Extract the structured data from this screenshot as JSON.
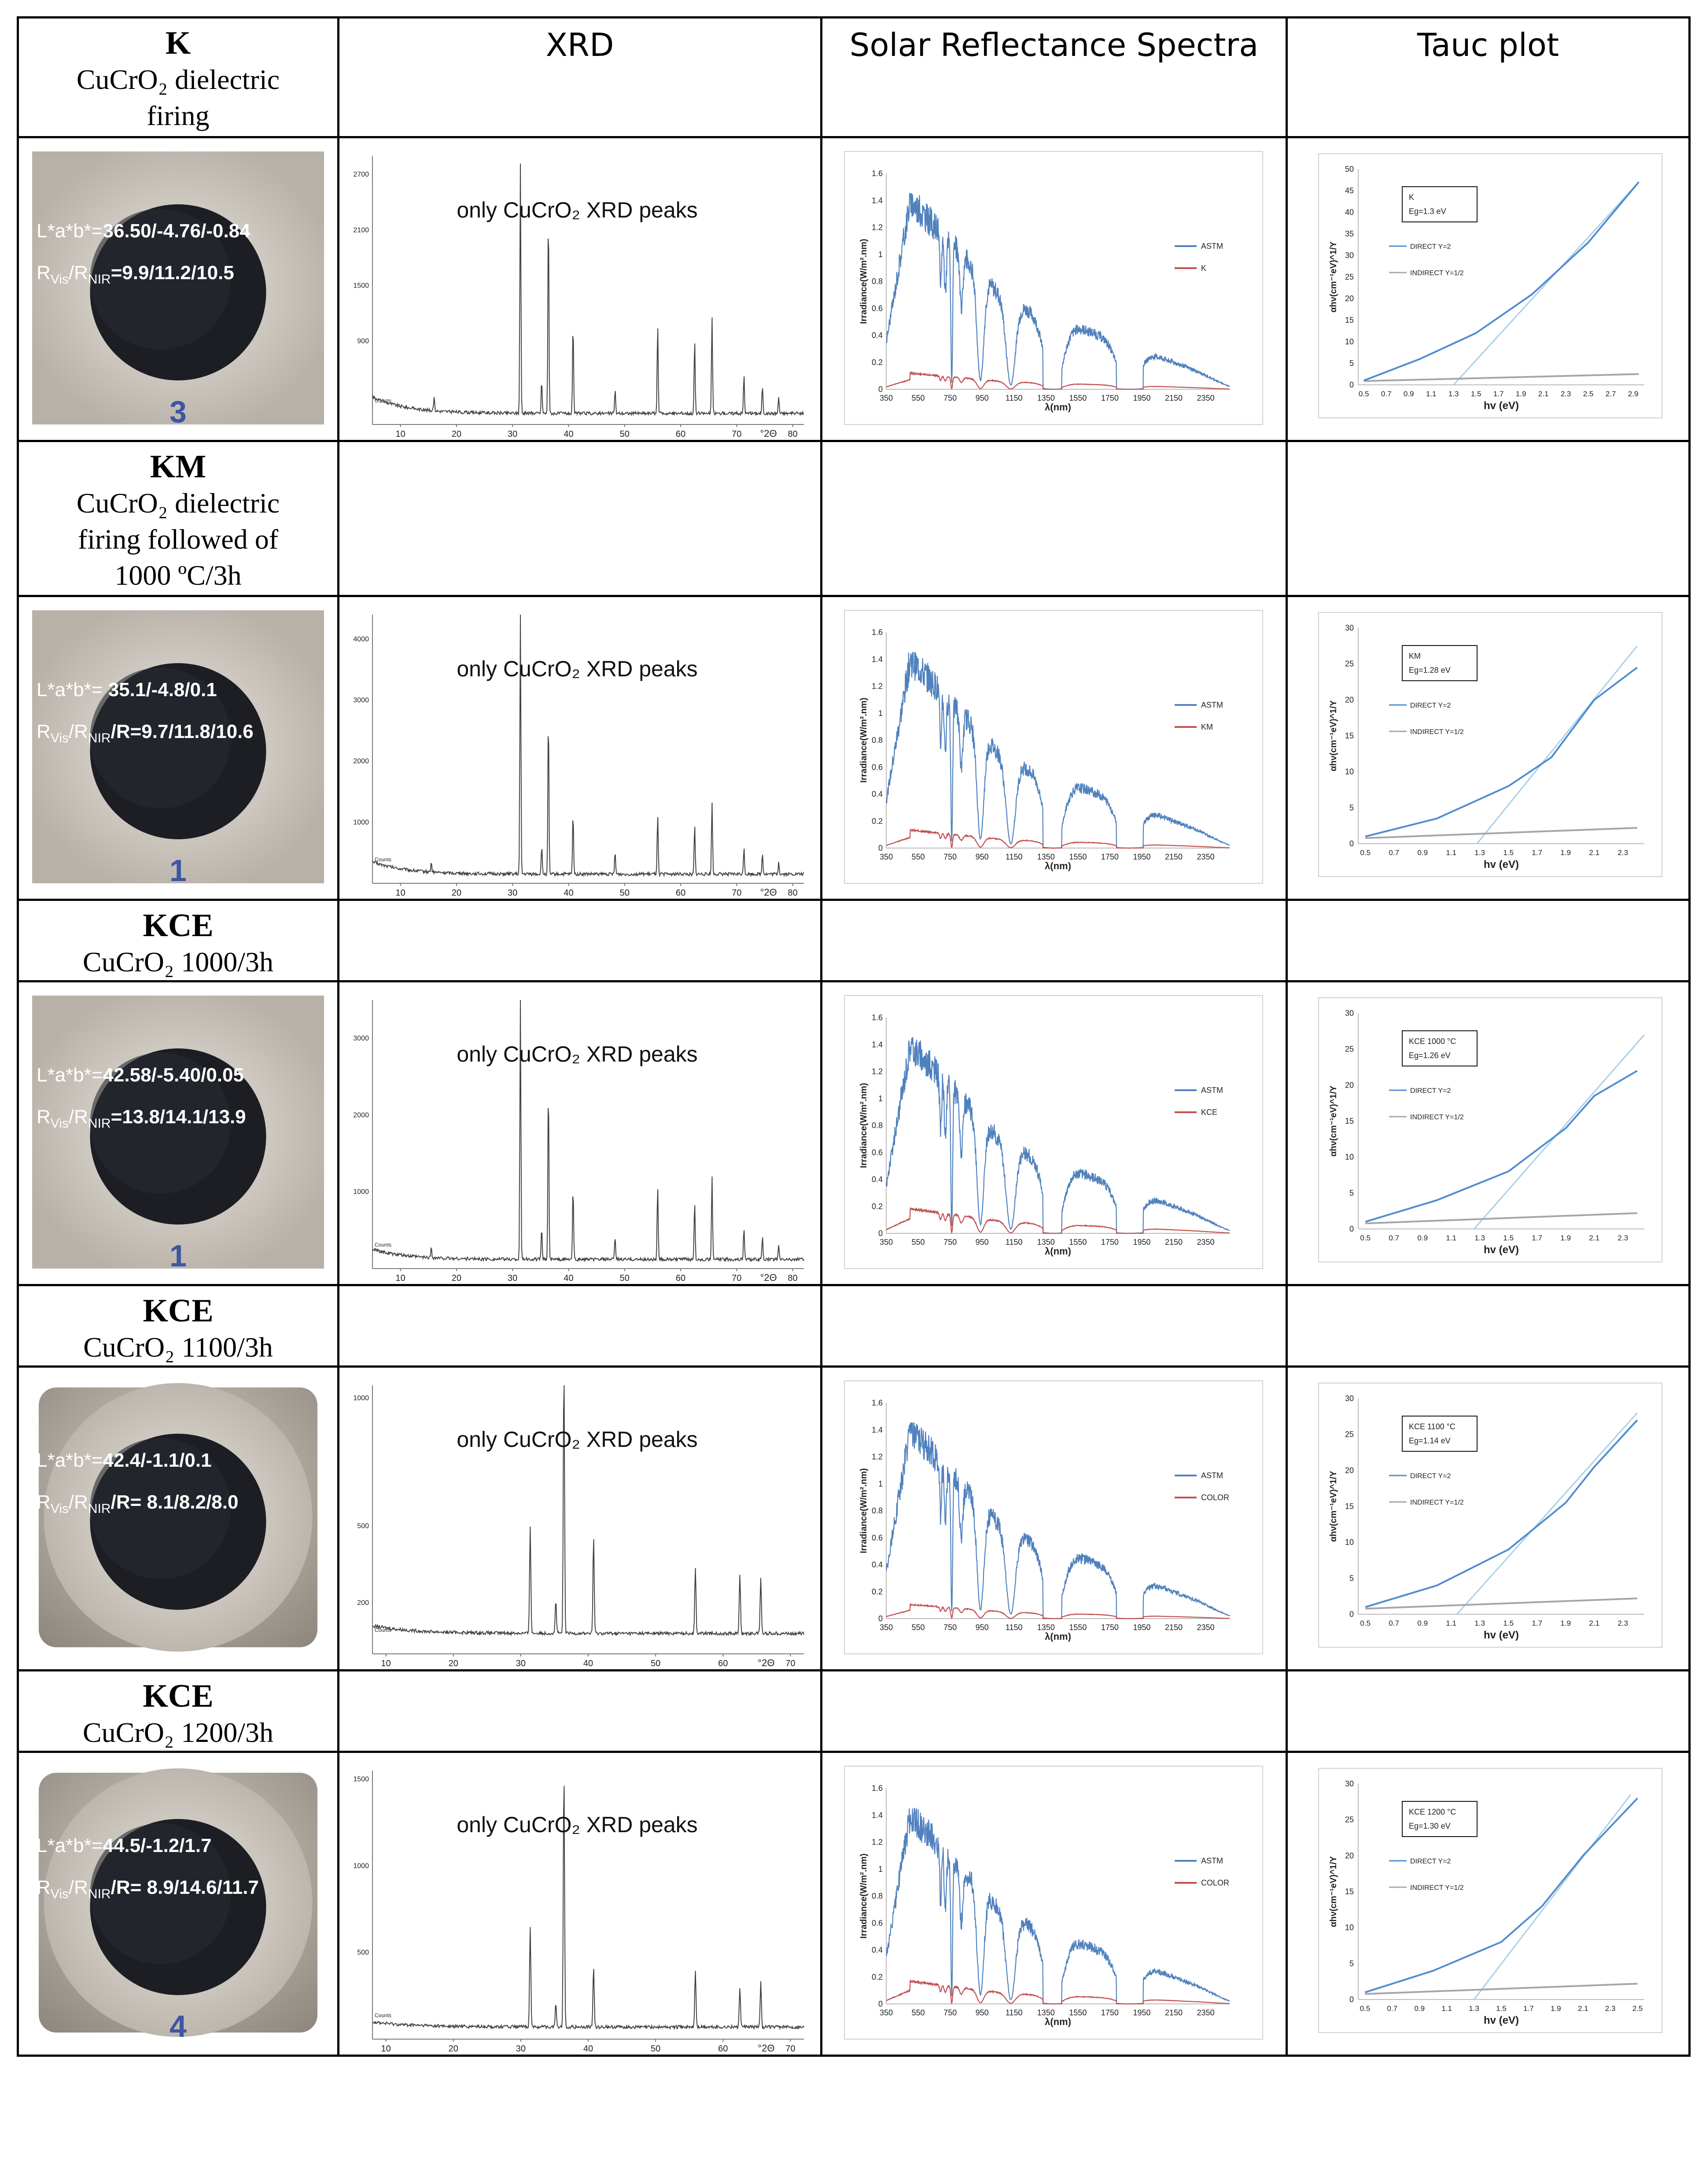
{
  "header": {
    "sample_name": "K",
    "sample_desc": [
      "CuCrO₂ dielectric",
      "firing"
    ],
    "col_xrd": "XRD",
    "col_solar": "Solar Reflectance Spectra",
    "col_tauc": "Tauc plot"
  },
  "colors": {
    "astm": "#4f81bd",
    "sample": "#c0504d",
    "direct": "#4f8cd0",
    "indirect": "#a6a6a6",
    "fit": "#a9cfe8",
    "xrd": "#404040"
  },
  "samples": [
    {
      "label_name": "",
      "label_desc": [],
      "photo": {
        "lab_label": "L*a*b*=",
        "lab_value": "36.50/-4.76/-0.84",
        "r_value": "=9.9/11.2/10.5",
        "sample_mark": "3",
        "style": "tight"
      },
      "xrd": {
        "annotation": "only CuCrO₂ XRD peaks",
        "counts_label": "Counts",
        "x_unit": "°2Θ",
        "x_ticks": [
          10,
          20,
          30,
          40,
          50,
          60,
          70,
          80
        ],
        "y_ticks": [
          900,
          1500,
          2100,
          2700
        ],
        "ymax": 2900,
        "xmin": 5,
        "xmax": 82,
        "peaks": [
          [
            16,
            150
          ],
          [
            31.4,
            2700
          ],
          [
            35.2,
            350
          ],
          [
            36.4,
            2200
          ],
          [
            40.8,
            950
          ],
          [
            48.3,
            260
          ],
          [
            55.9,
            950
          ],
          [
            62.5,
            800
          ],
          [
            65.6,
            1050
          ],
          [
            71.3,
            420
          ],
          [
            74.6,
            300
          ],
          [
            77.5,
            180
          ]
        ],
        "bg_start": 300,
        "bg_end": 120
      },
      "solar": {
        "legend_astm": "ASTM",
        "legend_sample": "K",
        "ylabel": "Irradiance(W/m².nm)",
        "xlabel": "λ(nm)",
        "x_ticks": [
          350,
          550,
          750,
          950,
          1150,
          1350,
          1550,
          1750,
          1950,
          2150,
          2350
        ],
        "y_ticks": [
          0,
          0.2,
          0.4,
          0.6,
          0.8,
          1,
          1.2,
          1.4,
          1.6
        ],
        "sample_scale": 0.085
      },
      "tauc": {
        "box_title": "K",
        "box_eg": "Eg=1.3 eV",
        "legend_direct": "DIRECT Y=2",
        "legend_indirect": "INDIRECT Y=1/2",
        "ylabel": "αhν(cm⁻¹eV)^1/Y",
        "xlabel": "hv (eV)",
        "x_ticks": [
          "0.5",
          "0.7",
          "0.9",
          "1.1",
          "1.3",
          "1.5",
          "1.7",
          "1.9",
          "2.1",
          "2.3",
          "2.5",
          "2.7",
          "2.9"
        ],
        "xmin": 0.45,
        "xmax": 3.0,
        "ymax": 50,
        "y_ticks": [
          0,
          5,
          10,
          15,
          20,
          25,
          30,
          35,
          40,
          45,
          50
        ],
        "eg": 1.3,
        "direct_end": 47,
        "indirect_end": 2.5,
        "direct_pts": [
          [
            0.5,
            1
          ],
          [
            1,
            6
          ],
          [
            1.5,
            12
          ],
          [
            2,
            21
          ],
          [
            2.5,
            33
          ],
          [
            2.95,
            47
          ]
        ],
        "fit_start": 1.3,
        "fit_end_x": 2.95,
        "fit_end_y": 47
      }
    },
    {
      "label_name": "KM",
      "label_desc": [
        "CuCrO₂ dielectric",
        "firing followed of",
        "1000 ºC/3h"
      ],
      "photo": {
        "lab_label": "L*a*b*= ",
        "lab_value": "35.1/-4.8/0.1",
        "r_value": "/R=9.7/11.8/10.6",
        "sample_mark": "1",
        "style": "tight"
      },
      "xrd": {
        "annotation": "only CuCrO₂ XRD peaks",
        "counts_label": "Counts",
        "x_unit": "°2Θ",
        "x_ticks": [
          10,
          20,
          30,
          40,
          50,
          60,
          70,
          80
        ],
        "y_ticks": [
          1000,
          2000,
          3000,
          4000
        ],
        "ymax": 4400,
        "xmin": 5,
        "xmax": 82,
        "peaks": [
          [
            15.5,
            150
          ],
          [
            31.4,
            4300
          ],
          [
            35.2,
            450
          ],
          [
            36.4,
            2600
          ],
          [
            40.8,
            1000
          ],
          [
            48.3,
            350
          ],
          [
            55.9,
            1000
          ],
          [
            62.5,
            800
          ],
          [
            65.6,
            1200
          ],
          [
            71.3,
            450
          ],
          [
            74.6,
            350
          ],
          [
            77.5,
            200
          ]
        ],
        "bg_start": 350,
        "bg_end": 150
      },
      "solar": {
        "legend_astm": "ASTM",
        "legend_sample": "KM",
        "ylabel": "Irradiance(W/m².nm)",
        "xlabel": "λ(nm)",
        "x_ticks": [
          350,
          550,
          750,
          950,
          1150,
          1350,
          1550,
          1750,
          1950,
          2150,
          2350
        ],
        "y_ticks": [
          0,
          0.2,
          0.4,
          0.6,
          0.8,
          1,
          1.2,
          1.4,
          1.6
        ],
        "sample_scale": 0.095
      },
      "tauc": {
        "box_title": "KM",
        "box_eg": "Eg=1.28 eV",
        "legend_direct": "DIRECT Y=2",
        "legend_indirect": "INDIRECT Y=1/2",
        "ylabel": "αhν(cm⁻¹eV)^1/Y",
        "xlabel": "hv (eV)",
        "x_ticks": [
          "0.5",
          "0.7",
          "0.9",
          "1.1",
          "1.3",
          "1.5",
          "1.7",
          "1.9",
          "2.1",
          "2.3"
        ],
        "xmin": 0.45,
        "xmax": 2.45,
        "ymax": 30,
        "y_ticks": [
          0,
          5,
          10,
          15,
          20,
          25,
          30
        ],
        "eg": 1.28,
        "indirect_end": 2.2,
        "direct_pts": [
          [
            0.5,
            1
          ],
          [
            1,
            3.5
          ],
          [
            1.5,
            8
          ],
          [
            1.8,
            12
          ],
          [
            2.1,
            20
          ],
          [
            2.4,
            24.5
          ]
        ],
        "fit_start": 1.28,
        "fit_end_x": 2.4,
        "fit_end_y": 27.5
      }
    },
    {
      "label_name": "KCE",
      "label_desc": [
        "CuCrO₂ 1000/3h"
      ],
      "photo": {
        "lab_label": "L*a*b*=",
        "lab_value": "42.58/-5.40/0.05",
        "r_value": "=13.8/14.1/13.9",
        "sample_mark": "1",
        "style": "tight"
      },
      "xrd": {
        "annotation": "only CuCrO₂ XRD peaks",
        "counts_label": "Counts",
        "x_unit": "°2Θ",
        "x_ticks": [
          10,
          20,
          30,
          40,
          50,
          60,
          70,
          80
        ],
        "y_ticks": [
          1000,
          2000,
          3000
        ],
        "ymax": 3500,
        "xmin": 5,
        "xmax": 82,
        "peaks": [
          [
            15.5,
            140
          ],
          [
            31.4,
            3400
          ],
          [
            35.2,
            400
          ],
          [
            36.4,
            2300
          ],
          [
            40.8,
            950
          ],
          [
            48.3,
            300
          ],
          [
            55.9,
            950
          ],
          [
            62.5,
            750
          ],
          [
            65.6,
            1100
          ],
          [
            71.3,
            420
          ],
          [
            74.6,
            300
          ],
          [
            77.5,
            180
          ]
        ],
        "bg_start": 250,
        "bg_end": 120
      },
      "solar": {
        "legend_astm": "ASTM",
        "legend_sample": "KCE",
        "ylabel": "Irradiance(W/m².nm)",
        "xlabel": "λ(nm)",
        "x_ticks": [
          350,
          550,
          750,
          950,
          1150,
          1350,
          1550,
          1750,
          1950,
          2150,
          2350
        ],
        "y_ticks": [
          0,
          0.2,
          0.4,
          0.6,
          0.8,
          1,
          1.2,
          1.4,
          1.6
        ],
        "sample_scale": 0.13
      },
      "tauc": {
        "box_title": "KCE 1000 °C",
        "box_eg": "Eg=1.26 eV",
        "legend_direct": "DIRECT Y=2",
        "legend_indirect": "INDIRECT Y=1/2",
        "ylabel": "αhν(cm⁻¹eV)^1/Y",
        "xlabel": "hv (eV)",
        "x_ticks": [
          "0.5",
          "0.7",
          "0.9",
          "1.1",
          "1.3",
          "1.5",
          "1.7",
          "1.9",
          "2.1",
          "2.3"
        ],
        "xmin": 0.45,
        "xmax": 2.45,
        "ymax": 30,
        "y_ticks": [
          0,
          5,
          10,
          15,
          20,
          25,
          30
        ],
        "eg": 1.26,
        "indirect_end": 2.2,
        "direct_pts": [
          [
            0.5,
            1
          ],
          [
            1,
            4
          ],
          [
            1.5,
            8
          ],
          [
            1.9,
            14
          ],
          [
            2.1,
            18.5
          ],
          [
            2.4,
            22
          ]
        ],
        "fit_start": 1.26,
        "fit_end_x": 2.45,
        "fit_end_y": 27
      }
    },
    {
      "label_name": "KCE",
      "label_desc": [
        "CuCrO₂ 1100/3h"
      ],
      "photo": {
        "lab_label": "L*a*b*=",
        "lab_value": "42.4/-1.1/0.1",
        "r_value": "/R= 8.1/8.2/8.0",
        "sample_mark": "",
        "style": "plain"
      },
      "xrd": {
        "annotation": "only CuCrO₂ XRD peaks",
        "counts_label": "Counts",
        "x_unit": "°2Θ",
        "x_ticks": [
          10,
          20,
          30,
          40,
          50,
          60,
          70
        ],
        "y_ticks": [
          200,
          500,
          1000
        ],
        "ymax": 1050,
        "xmin": 8,
        "xmax": 72,
        "peaks": [
          [
            31.4,
            420
          ],
          [
            35.2,
            130
          ],
          [
            36.4,
            1050
          ],
          [
            40.8,
            380
          ],
          [
            55.9,
            260
          ],
          [
            62.5,
            230
          ],
          [
            65.6,
            220
          ]
        ],
        "bg_start": 110,
        "bg_end": 80
      },
      "solar": {
        "legend_astm": "ASTM",
        "legend_sample": "COLOR",
        "ylabel": "Irradiance(W/m².nm)",
        "xlabel": "λ(nm)",
        "x_ticks": [
          350,
          550,
          750,
          950,
          1150,
          1350,
          1550,
          1750,
          1950,
          2150,
          2350
        ],
        "y_ticks": [
          0,
          0.2,
          0.4,
          0.6,
          0.8,
          1,
          1.2,
          1.4,
          1.6
        ],
        "sample_scale": 0.075
      },
      "tauc": {
        "box_title": "KCE 1100 °C",
        "box_eg": "Eg=1.14 eV",
        "legend_direct": "DIRECT Y=2",
        "legend_indirect": "INDIRECT Y=1/2",
        "ylabel": "αhν(cm⁻¹eV)^1/Y",
        "xlabel": "hv (eV)",
        "x_ticks": [
          "0.5",
          "0.7",
          "0.9",
          "1.1",
          "1.3",
          "1.5",
          "1.7",
          "1.9",
          "2.1",
          "2.3"
        ],
        "xmin": 0.45,
        "xmax": 2.45,
        "ymax": 30,
        "y_ticks": [
          0,
          5,
          10,
          15,
          20,
          25,
          30
        ],
        "eg": 1.14,
        "indirect_end": 2.2,
        "direct_pts": [
          [
            0.5,
            1
          ],
          [
            1,
            4
          ],
          [
            1.5,
            9
          ],
          [
            1.9,
            15.5
          ],
          [
            2.1,
            20.5
          ],
          [
            2.4,
            27
          ]
        ],
        "fit_start": 1.14,
        "fit_end_x": 2.4,
        "fit_end_y": 28
      }
    },
    {
      "label_name": "KCE",
      "label_desc": [
        "CuCrO₂ 1200/3h"
      ],
      "photo": {
        "lab_label": "L*a*b*=",
        "lab_value": "44.5/-1.2/1.7",
        "r_value": "/R= 8.9/14.6/11.7",
        "sample_mark": "4",
        "style": "plain"
      },
      "xrd": {
        "annotation": "only CuCrO₂ XRD peaks",
        "counts_label": "Counts",
        "x_unit": "°2Θ",
        "x_ticks": [
          10,
          20,
          30,
          40,
          50,
          60,
          70
        ],
        "y_ticks": [
          500,
          1000,
          1500
        ],
        "ymax": 1550,
        "xmin": 8,
        "xmax": 72,
        "peaks": [
          [
            31.4,
            580
          ],
          [
            35.2,
            140
          ],
          [
            36.4,
            1500
          ],
          [
            40.8,
            350
          ],
          [
            55.9,
            330
          ],
          [
            62.5,
            230
          ],
          [
            65.6,
            260
          ]
        ],
        "bg_start": 100,
        "bg_end": 70
      },
      "solar": {
        "legend_astm": "ASTM",
        "legend_sample": "COLOR",
        "ylabel": "Irradiance(W/m².nm)",
        "xlabel": "λ(nm)",
        "x_ticks": [
          350,
          550,
          750,
          950,
          1150,
          1350,
          1550,
          1750,
          1950,
          2150,
          2350
        ],
        "y_ticks": [
          0,
          0.2,
          0.4,
          0.6,
          0.8,
          1,
          1.2,
          1.4,
          1.6
        ],
        "sample_scale": 0.12
      },
      "tauc": {
        "box_title": "KCE 1200 °C",
        "box_eg": "Eg=1.30 eV",
        "legend_direct": "DIRECT Y=2",
        "legend_indirect": "INDIRECT Y=1/2",
        "ylabel": "αhν(cm⁻¹eV)^1/Y",
        "xlabel": "hv (eV)",
        "x_ticks": [
          "0.5",
          "0.7",
          "0.9",
          "1.1",
          "1.3",
          "1.5",
          "1.7",
          "1.9",
          "2.1",
          "2.3",
          "2.5"
        ],
        "xmin": 0.45,
        "xmax": 2.55,
        "ymax": 30,
        "y_ticks": [
          0,
          5,
          10,
          15,
          20,
          25,
          30
        ],
        "eg": 1.3,
        "indirect_end": 2.2,
        "direct_pts": [
          [
            0.5,
            1
          ],
          [
            1,
            4
          ],
          [
            1.5,
            8
          ],
          [
            1.8,
            13
          ],
          [
            2.1,
            20
          ],
          [
            2.5,
            28
          ]
        ],
        "fit_start": 1.3,
        "fit_end_x": 2.45,
        "fit_end_y": 28.5
      }
    }
  ],
  "chart_data": [
    {
      "type": "line",
      "title": "XRD",
      "xlabel": "°2Θ",
      "ylabel": "Counts",
      "series": [
        {
          "name": "",
          "values": []
        }
      ],
      "annotation": "only CuCrO₂ XRD peaks"
    },
    {
      "type": "line",
      "title": "Solar Reflectance Spectra",
      "xlabel": "λ(nm)",
      "ylabel": "Irradiance(W/m².nm)",
      "xlim": [
        350,
        2500
      ],
      "ylim": [
        0,
        1.6
      ],
      "series": [
        {
          "name": "ASTM"
        },
        {
          "name": "K"
        },
        {
          "name": "KM"
        },
        {
          "name": "KCE"
        },
        {
          "name": "COLOR"
        }
      ]
    },
    {
      "type": "line",
      "title": "Tauc plot",
      "xlabel": "hv (eV)",
      "ylabel": "αhν(cm⁻¹eV)^1/Y",
      "series": [
        {
          "name": "DIRECT Y=2"
        },
        {
          "name": "INDIRECT Y=1/2"
        }
      ],
      "band_gaps_eV": {
        "K": 1.3,
        "KM": 1.28,
        "KCE 1000 °C": 1.26,
        "KCE 1100 °C": 1.14,
        "KCE 1200 °C": 1.3
      }
    }
  ]
}
